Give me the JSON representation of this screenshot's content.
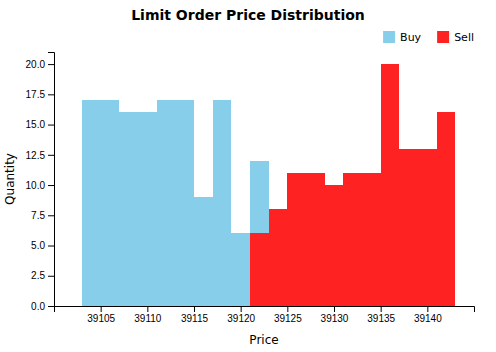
{
  "chart_data": {
    "type": "histogram",
    "title": "Limit Order Price Distribution",
    "xlabel": "Price",
    "ylabel": "Quantity",
    "series": [
      {
        "name": "Buy",
        "color": "#87CEEB",
        "bins": [
          39103,
          39105,
          39107,
          39109,
          39111,
          39113,
          39115,
          39117,
          39119,
          39121,
          39123
        ],
        "values": [
          17,
          17,
          16,
          16,
          17,
          17,
          9,
          17,
          6,
          12
        ]
      },
      {
        "name": "Sell",
        "color": "#FF2222",
        "bins": [
          39121,
          39123,
          39125,
          39127,
          39129,
          39131,
          39133,
          39135,
          39137,
          39139,
          39141,
          39143
        ],
        "values": [
          6,
          8,
          11,
          11,
          10,
          11,
          11,
          20,
          13,
          13,
          16
        ]
      }
    ],
    "xlim": [
      39100,
      39145
    ],
    "xticks": [
      39105,
      39110,
      39115,
      39120,
      39125,
      39130,
      39135,
      39140
    ],
    "ylim": [
      0,
      21
    ],
    "yticks": [
      {
        "value": 0,
        "label": "0.0"
      },
      2.5,
      {
        "value": 5,
        "label": "5.0"
      },
      7.5,
      {
        "value": 10,
        "label": "10.0"
      },
      12.5,
      {
        "value": 15,
        "label": "15.0"
      },
      17.5,
      {
        "value": 20,
        "label": "20.0"
      }
    ],
    "legend": "upper right"
  }
}
